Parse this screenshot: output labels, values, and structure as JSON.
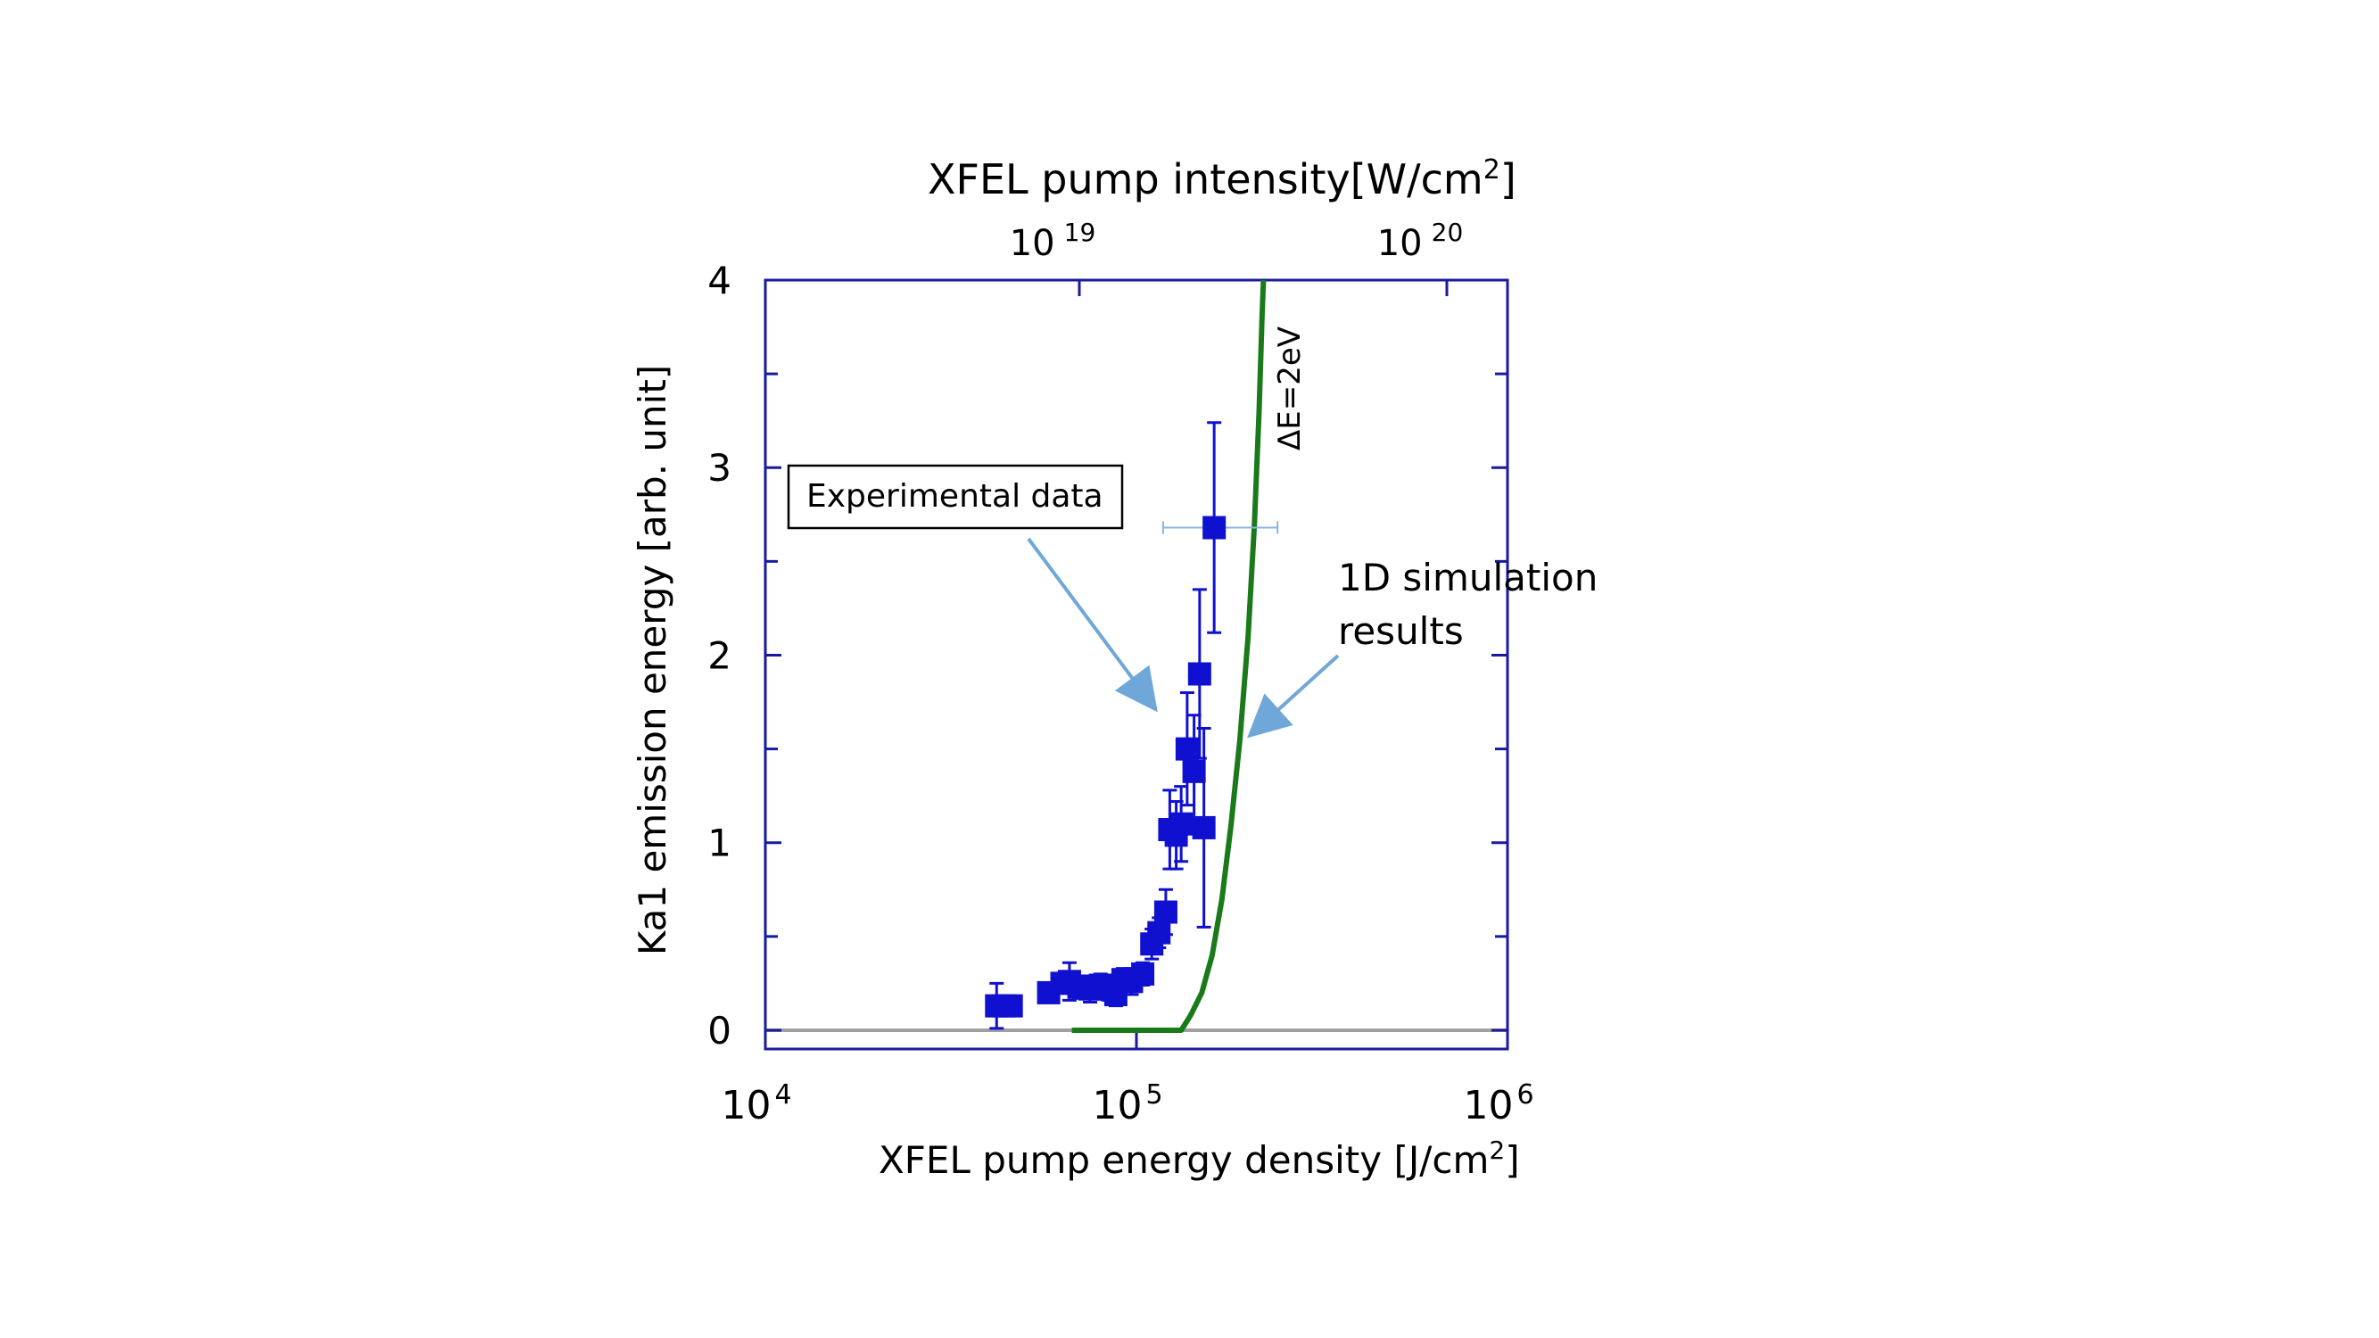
{
  "chart_data": {
    "type": "scatter",
    "top_axis": {
      "label_main": "XFEL pump intensity[W/cm",
      "label_sup": "2",
      "label_end": "]",
      "scale": "log",
      "ticks": [
        {
          "base": "10",
          "exp": "19",
          "value": 1e+19
        },
        {
          "base": "10",
          "exp": "20",
          "value": 1e+20
        }
      ]
    },
    "x_axis": {
      "label_main": "XFEL pump energy density [J/cm",
      "label_sup": "2",
      "label_end": "]",
      "scale": "log",
      "range": [
        10000,
        1000000
      ],
      "ticks": [
        {
          "base": "10",
          "exp": "4",
          "value": 10000
        },
        {
          "base": "10",
          "exp": "5",
          "value": 100000
        },
        {
          "base": "10",
          "exp": "6",
          "value": 1000000
        }
      ]
    },
    "y_axis": {
      "label": "Ka1 emission energy [arb. unit]",
      "range": [
        -0.1,
        4
      ],
      "ticks": [
        "0",
        "1",
        "2",
        "3",
        "4"
      ],
      "minor_ticks": [
        0.5,
        1.5,
        2.5,
        3.5
      ]
    },
    "series": [
      {
        "name": "Experimental data",
        "type": "scatter",
        "color": "#1010d0",
        "points": [
          {
            "x": 42000,
            "y": 0.13,
            "yerr": 0.12
          },
          {
            "x": 44000,
            "y": 0.13,
            "yerr": 0.03
          },
          {
            "x": 46000,
            "y": 0.13,
            "yerr": 0.03
          },
          {
            "x": 58000,
            "y": 0.2,
            "yerr": 0.04
          },
          {
            "x": 63000,
            "y": 0.25,
            "yerr": 0.05
          },
          {
            "x": 66000,
            "y": 0.26,
            "yerr": 0.1
          },
          {
            "x": 70000,
            "y": 0.23,
            "yerr": 0.06
          },
          {
            "x": 75000,
            "y": 0.22,
            "yerr": 0.07
          },
          {
            "x": 80000,
            "y": 0.24,
            "yerr": 0.06
          },
          {
            "x": 84000,
            "y": 0.22,
            "yerr": 0.06
          },
          {
            "x": 88000,
            "y": 0.19,
            "yerr": 0.06
          },
          {
            "x": 92000,
            "y": 0.27,
            "yerr": 0.06
          },
          {
            "x": 97000,
            "y": 0.26,
            "yerr": 0.07
          },
          {
            "x": 104000,
            "y": 0.3,
            "yerr": 0.06
          },
          {
            "x": 110000,
            "y": 0.46,
            "yerr": 0.08
          },
          {
            "x": 115000,
            "y": 0.52,
            "yerr": 0.08
          },
          {
            "x": 120000,
            "y": 0.63,
            "yerr": 0.12
          },
          {
            "x": 123000,
            "y": 1.07,
            "yerr": 0.21
          },
          {
            "x": 128000,
            "y": 1.04,
            "yerr": 0.18
          },
          {
            "x": 132000,
            "y": 1.1,
            "yerr": 0.2
          },
          {
            "x": 137000,
            "y": 1.5,
            "yerr": 0.3
          },
          {
            "x": 143000,
            "y": 1.38,
            "yerr": 0.3
          },
          {
            "x": 148000,
            "y": 1.9,
            "yerr": 0.45
          },
          {
            "x": 152000,
            "y": 1.08,
            "yerr": 0.53
          },
          {
            "x": 162000,
            "y": 2.68,
            "yerr": 0.56,
            "xerr_low": 118000,
            "xerr_high": 240000
          }
        ]
      },
      {
        "name": "1D simulation results",
        "type": "line",
        "color": "#1a7a1a",
        "annotation": "ΔE=2eV",
        "points": [
          {
            "x": 67000,
            "y": 0.0
          },
          {
            "x": 132000,
            "y": 0.0
          },
          {
            "x": 140000,
            "y": 0.08
          },
          {
            "x": 150000,
            "y": 0.2
          },
          {
            "x": 160000,
            "y": 0.4
          },
          {
            "x": 170000,
            "y": 0.7
          },
          {
            "x": 180000,
            "y": 1.1
          },
          {
            "x": 190000,
            "y": 1.55
          },
          {
            "x": 200000,
            "y": 2.1
          },
          {
            "x": 208000,
            "y": 2.7
          },
          {
            "x": 214000,
            "y": 3.3
          },
          {
            "x": 218000,
            "y": 3.8
          },
          {
            "x": 220000,
            "y": 4.0
          }
        ]
      }
    ],
    "baseline": {
      "y": 0,
      "color": "#a0a0a0"
    },
    "annotations": {
      "experimental_label": "Experimental data",
      "simulation_label_line1": "1D simulation",
      "simulation_label_line2": "results",
      "curve_label": "ΔE=2eV"
    },
    "colors": {
      "frame": "#1a1aa0",
      "data": "#1010d0",
      "simulation": "#1a7a1a",
      "arrow": "#6fa7d8",
      "xerr": "#8ab4e0"
    }
  }
}
